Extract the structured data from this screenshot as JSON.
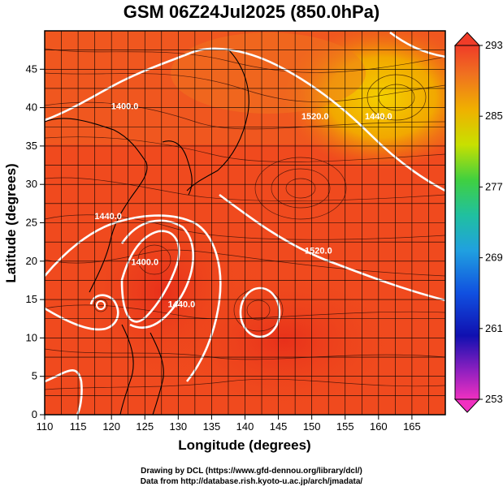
{
  "title": "GSM 06Z24Jul2025 (850.0hPa)",
  "x_axis": {
    "label": "Longitude (degrees)",
    "ticks": [
      "110",
      "115",
      "120",
      "125",
      "130",
      "135",
      "140",
      "145",
      "150",
      "155",
      "160",
      "165"
    ],
    "range": [
      110,
      170
    ]
  },
  "y_axis": {
    "label": "Latitude  (degrees)",
    "ticks": [
      "0",
      "5",
      "10",
      "15",
      "20",
      "25",
      "30",
      "35",
      "40",
      "45"
    ],
    "range": [
      0,
      50
    ]
  },
  "colorbar": {
    "labels": [
      "293",
      "285",
      "277",
      "269",
      "261",
      "253"
    ],
    "range": [
      253,
      293
    ]
  },
  "contour_labels": [
    {
      "text": "1400.0",
      "lon": 122.0,
      "lat": 39.8
    },
    {
      "text": "1520.0",
      "lon": 150.5,
      "lat": 38.5
    },
    {
      "text": "1440.0",
      "lon": 160.0,
      "lat": 38.5
    },
    {
      "text": "1440.0",
      "lon": 119.5,
      "lat": 25.5
    },
    {
      "text": "1400.0",
      "lon": 125.0,
      "lat": 19.5
    },
    {
      "text": "1520.0",
      "lon": 151.0,
      "lat": 21.0
    },
    {
      "text": "1440.0",
      "lon": 130.5,
      "lat": 14.0
    }
  ],
  "credit": {
    "line1": "Drawing by DCL (https://www.gfd-dennou.org/library/dcl/)",
    "line2": "Data from http://database.rish.kyoto-u.ac.jp/arch/jmadata/"
  },
  "colors": {
    "field_warm": "#f03a1c",
    "field_mid": "#f05a20",
    "field_yellow": "#f0c000",
    "contour": "#ffffff",
    "grid": "#000000"
  },
  "chart_data": {
    "type": "heatmap",
    "title": "GSM 06Z24Jul2025 (850.0hPa)",
    "xlabel": "Longitude (degrees)",
    "ylabel": "Latitude  (degrees)",
    "xlim": [
      110,
      170
    ],
    "ylim": [
      0,
      50
    ],
    "colorbar_range": [
      253,
      293
    ],
    "colorbar_ticks": [
      293,
      285,
      277,
      269,
      261,
      253
    ],
    "contour_levels_labeled": [
      1400.0,
      1440.0,
      1520.0
    ],
    "grid": true
  }
}
